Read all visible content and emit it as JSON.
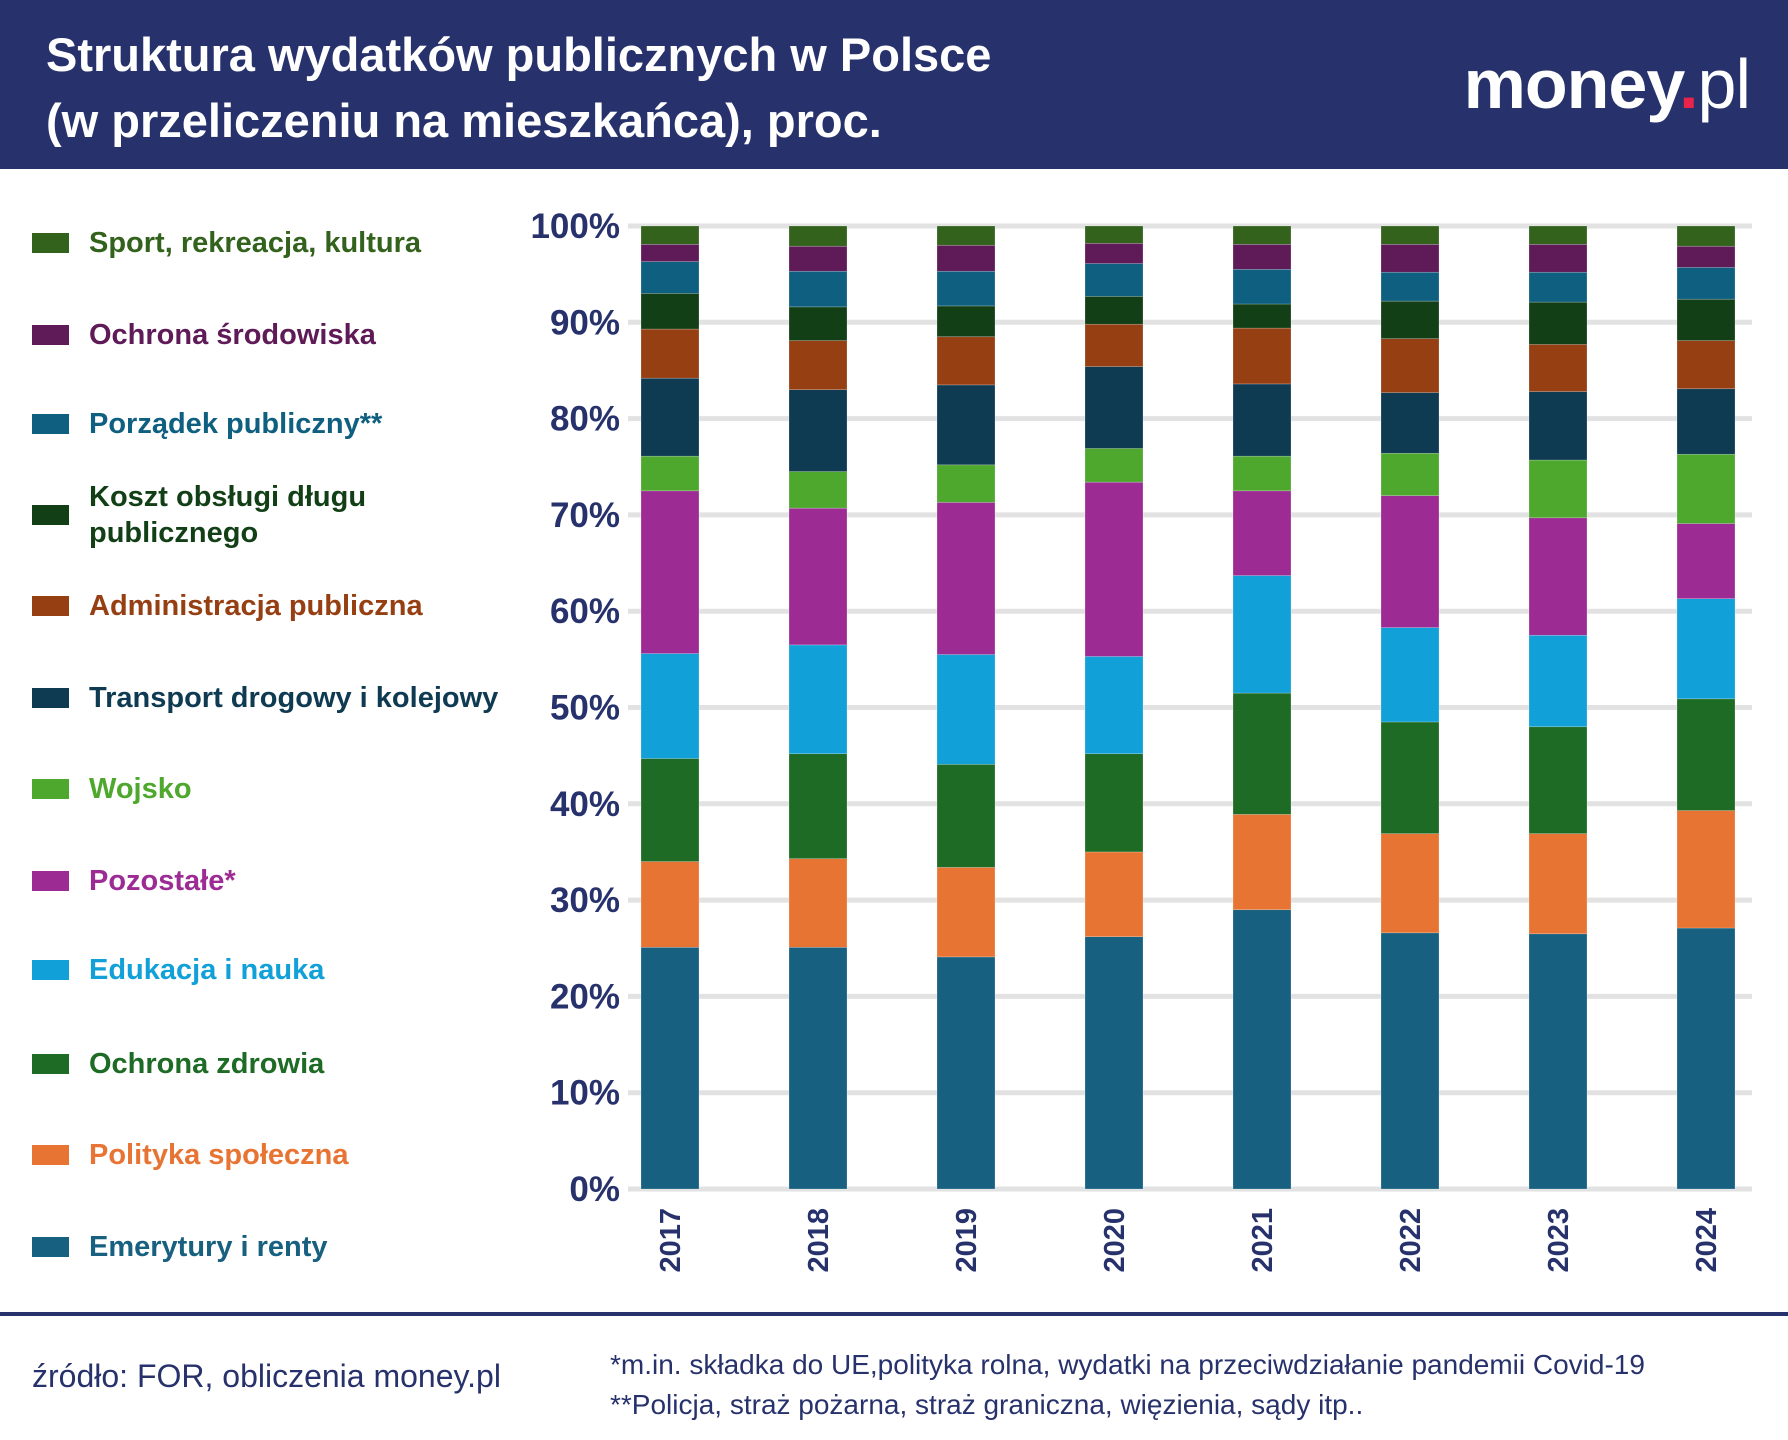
{
  "header": {
    "title_line1": "Struktura wydatków publicznych w Polsce",
    "title_line2": "(w przeliczeniu na mieszkańca), proc.",
    "logo_main": "money",
    "logo_dot": ".",
    "logo_tld": "pl",
    "background": "#27326c"
  },
  "chart_data": {
    "type": "bar",
    "stacked": true,
    "orientation": "vertical",
    "categories": [
      "2017",
      "2018",
      "2019",
      "2020",
      "2021",
      "2022",
      "2023",
      "2024"
    ],
    "ylim": [
      0,
      100
    ],
    "y_ticks": [
      "0%",
      "10%",
      "20%",
      "30%",
      "40%",
      "50%",
      "60%",
      "70%",
      "80%",
      "90%",
      "100%"
    ],
    "grid": true,
    "legend_position": "left",
    "series": [
      {
        "name": "Emerytury i renty",
        "color": "#17607f",
        "values": [
          25.1,
          25.1,
          24.1,
          26.2,
          29.0,
          26.6,
          26.5,
          27.1
        ]
      },
      {
        "name": "Polityka społeczna",
        "color": "#e87434",
        "values": [
          8.9,
          9.2,
          9.3,
          8.8,
          9.9,
          10.3,
          10.4,
          12.2
        ]
      },
      {
        "name": "Ochrona zdrowia",
        "color": "#1e6b25",
        "values": [
          10.7,
          10.9,
          10.7,
          10.2,
          12.6,
          11.6,
          11.1,
          11.6
        ]
      },
      {
        "name": "Edukacja i nauka",
        "color": "#11a0d8",
        "values": [
          10.9,
          11.3,
          11.4,
          10.1,
          12.2,
          9.8,
          9.5,
          10.4
        ]
      },
      {
        "name": "Pozostałe*",
        "color": "#9c2c94",
        "values": [
          16.9,
          14.2,
          15.8,
          18.1,
          8.8,
          13.7,
          12.2,
          7.8
        ]
      },
      {
        "name": "Wojsko",
        "color": "#4ea82e",
        "values": [
          3.6,
          3.8,
          3.9,
          3.5,
          3.6,
          4.4,
          6.0,
          7.2
        ]
      },
      {
        "name": "Transport drogowy i kolejowy",
        "color": "#0e3a52",
        "values": [
          8.1,
          8.5,
          8.3,
          8.5,
          7.5,
          6.3,
          7.1,
          6.8
        ]
      },
      {
        "name": "Administracja publiczna",
        "color": "#963f12",
        "values": [
          5.1,
          5.1,
          5.0,
          4.4,
          5.8,
          5.6,
          4.9,
          5.0
        ]
      },
      {
        "name": "Koszt obsługi długu publicznego",
        "color": "#123f16",
        "values": [
          3.7,
          3.5,
          3.2,
          2.9,
          2.5,
          3.9,
          4.4,
          4.3
        ]
      },
      {
        "name": "Porządek publiczny**",
        "color": "#0e5f80",
        "values": [
          3.3,
          3.7,
          3.6,
          3.4,
          3.6,
          3.0,
          3.1,
          3.3
        ]
      },
      {
        "name": "Ochrona środowiska",
        "color": "#5e1b58",
        "values": [
          1.8,
          2.6,
          2.7,
          2.1,
          2.6,
          2.9,
          2.9,
          2.2
        ]
      },
      {
        "name": "Sport, rekreacja, kultura",
        "color": "#33621c",
        "values": [
          1.9,
          2.1,
          2.0,
          1.8,
          1.9,
          1.9,
          1.9,
          2.1
        ]
      }
    ],
    "axis_color": "#27326c"
  },
  "legend": [
    {
      "line1": "Sport, rekreacja, kultura",
      "line2": ""
    },
    {
      "line1": "Ochrona środowiska",
      "line2": ""
    },
    {
      "line1": "Porządek publiczny**",
      "line2": ""
    },
    {
      "line1": "Koszt obsługi długu",
      "line2": "publicznego"
    },
    {
      "line1": "Administracja publiczna",
      "line2": ""
    },
    {
      "line1": "Transport drogowy i kolejowy",
      "line2": ""
    },
    {
      "line1": "Wojsko",
      "line2": ""
    },
    {
      "line1": "Pozostałe*",
      "line2": ""
    },
    {
      "line1": "Edukacja i nauka",
      "line2": ""
    },
    {
      "line1": "Ochrona zdrowia",
      "line2": ""
    },
    {
      "line1": "Polityka społeczna",
      "line2": ""
    },
    {
      "line1": "Emerytury i renty",
      "line2": ""
    }
  ],
  "footer": {
    "source": "źródło: FOR, obliczenia money.pl",
    "note1": "*m.in. składka do UE,polityka rolna, wydatki na przeciwdziałanie pandemii Covid-19",
    "note2": "**Policja, straż pożarna, straż graniczna, więzienia, sądy itp.."
  }
}
